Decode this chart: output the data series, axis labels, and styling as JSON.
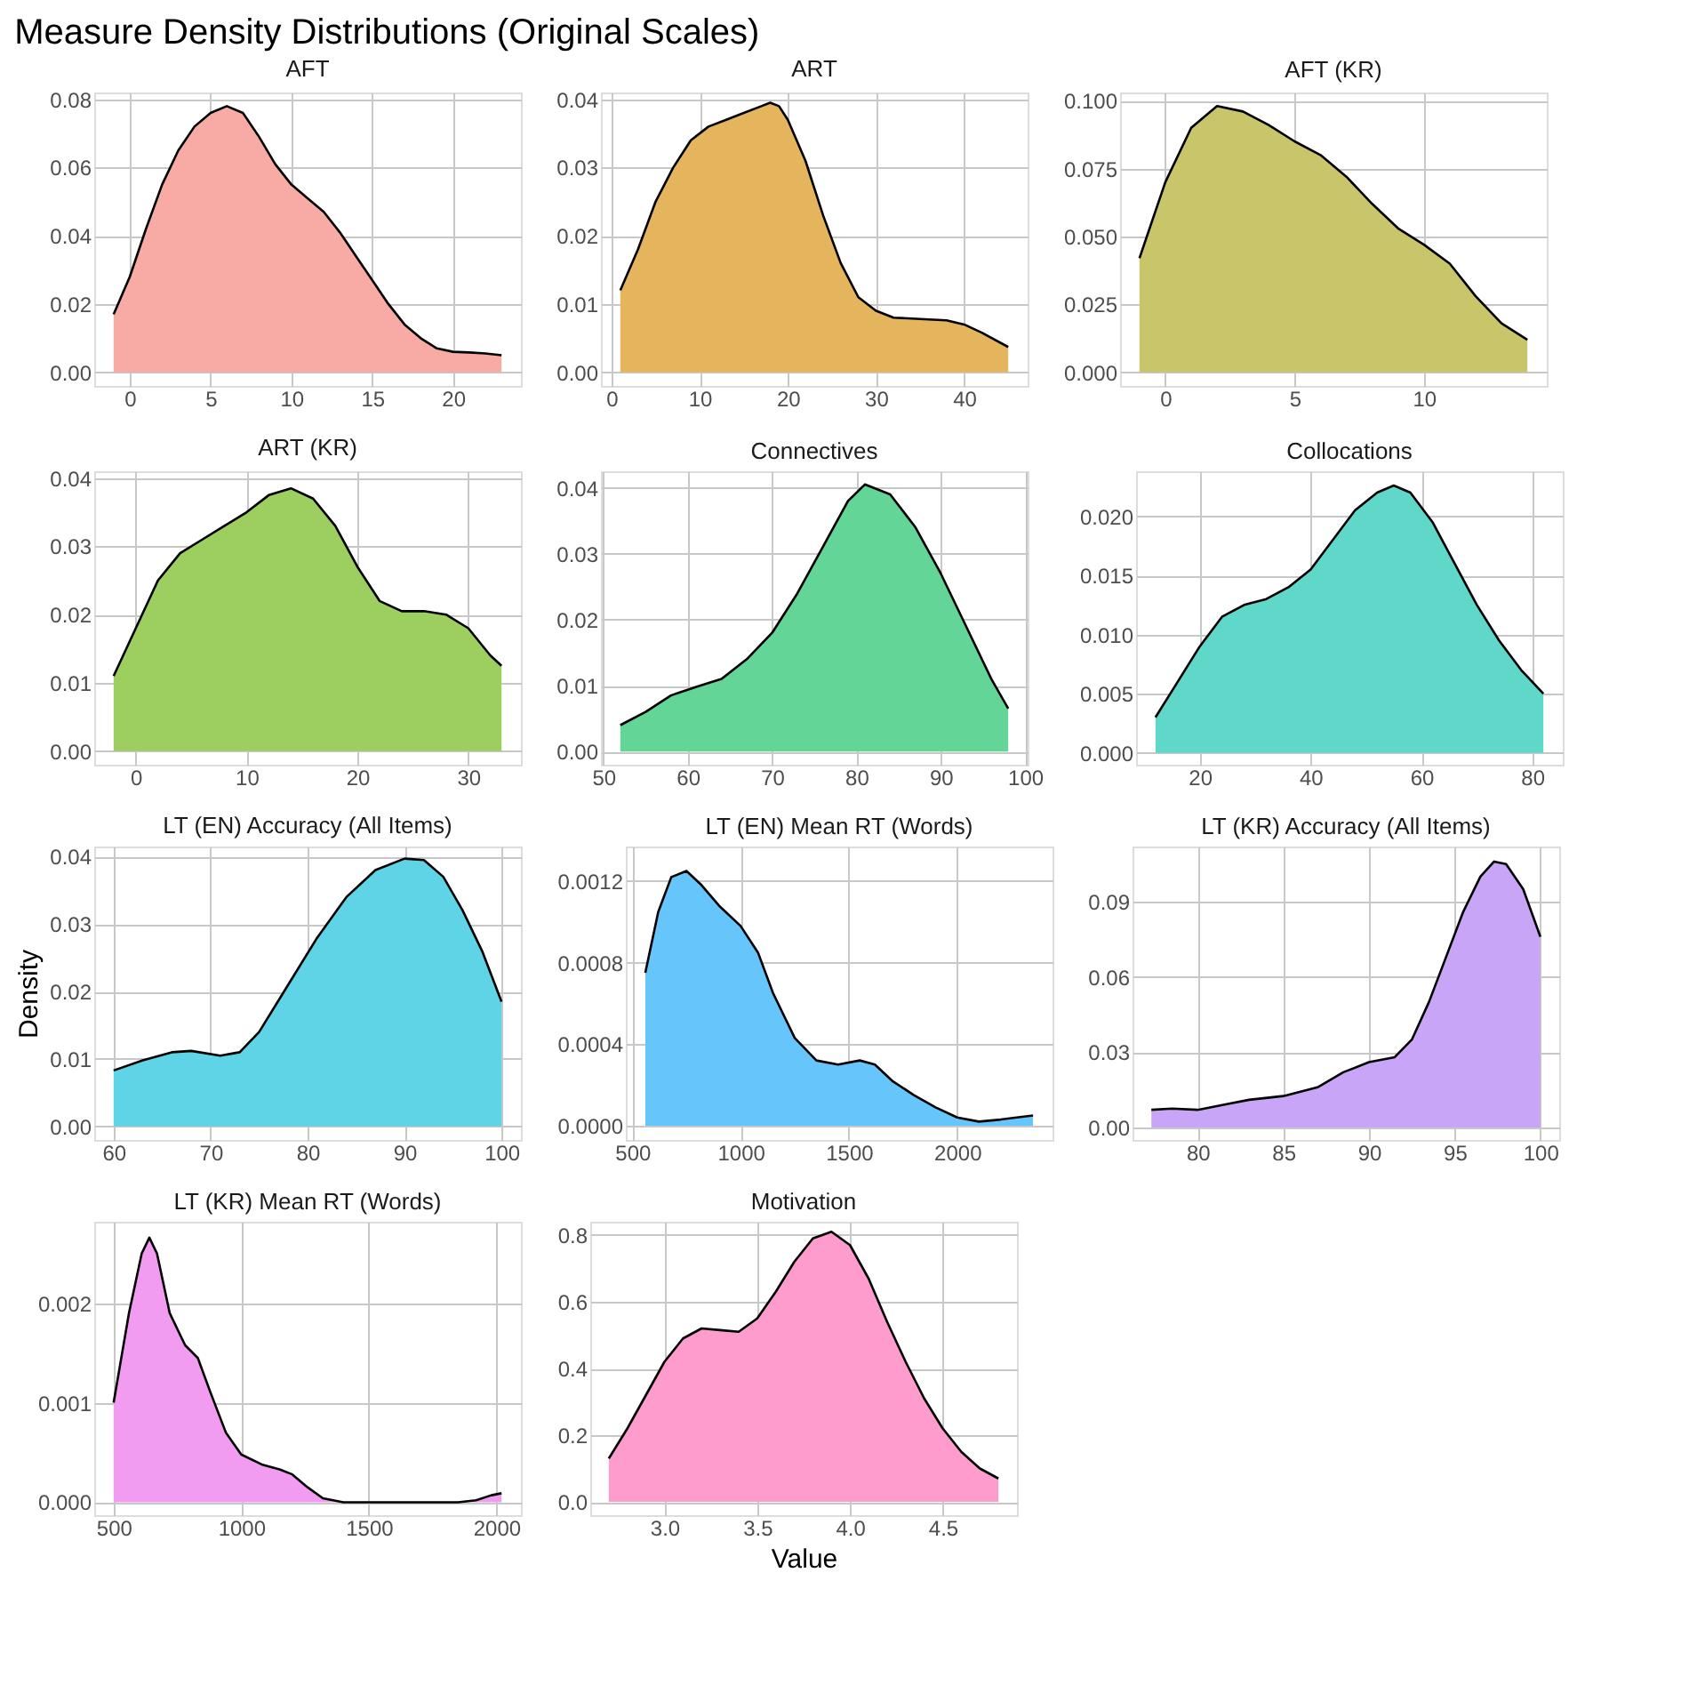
{
  "chart_data": [
    {
      "type": "area",
      "title": "AFT",
      "annotations": [
        "Measure Density Distributions (Original Scales)"
      ],
      "grid": true,
      "color": "#f8aaa5",
      "xlim": [
        -2.2,
        24.2
      ],
      "ylim": [
        -0.004,
        0.082
      ],
      "xticks": [
        0,
        5,
        10,
        15,
        20
      ],
      "yticks": [
        {
          "value": 0,
          "label": "0.00"
        },
        0.02,
        0.04,
        0.06,
        0.08
      ],
      "x": [
        -1,
        0,
        1,
        2,
        3,
        4,
        5,
        6,
        7,
        8,
        9,
        10,
        11,
        12,
        13,
        14,
        15,
        16,
        17,
        18,
        19,
        20,
        21,
        22,
        23
      ],
      "values": [
        0.017,
        0.028,
        0.042,
        0.055,
        0.065,
        0.072,
        0.076,
        0.078,
        0.076,
        0.069,
        0.061,
        0.055,
        0.051,
        0.047,
        0.041,
        0.034,
        0.027,
        0.02,
        0.014,
        0.01,
        0.007,
        0.006,
        0.0058,
        0.0055,
        0.005
      ]
    },
    {
      "type": "area",
      "title": "ART",
      "grid": true,
      "color": "#e5b55e",
      "xlim": [
        -1.2,
        47.2
      ],
      "ylim": [
        -0.002,
        0.041
      ],
      "xticks": [
        0,
        10,
        20,
        30,
        40
      ],
      "yticks": [
        {
          "value": 0,
          "label": "0.00"
        },
        0.01,
        0.02,
        0.03,
        0.04
      ],
      "x": [
        1,
        3,
        5,
        7,
        9,
        11,
        13,
        15,
        17,
        18,
        19,
        20,
        22,
        24,
        26,
        28,
        30,
        32,
        35,
        38,
        40,
        42,
        45
      ],
      "values": [
        0.012,
        0.018,
        0.025,
        0.03,
        0.034,
        0.036,
        0.037,
        0.038,
        0.039,
        0.0395,
        0.039,
        0.037,
        0.031,
        0.023,
        0.016,
        0.011,
        0.009,
        0.008,
        0.0078,
        0.0076,
        0.007,
        0.0058,
        0.0037
      ]
    },
    {
      "type": "area",
      "title": "AFT (KR)",
      "grid": true,
      "color": "#c9c56a",
      "xlim": [
        -1.75,
        14.75
      ],
      "ylim": [
        -0.005,
        0.103
      ],
      "xticks": [
        0,
        5,
        10
      ],
      "yticks": [
        {
          "value": 0,
          "label": "0.000"
        },
        0.025,
        {
          "value": 0.05,
          "label": "0.050"
        },
        0.075,
        {
          "value": 0.1,
          "label": "0.100"
        }
      ],
      "x": [
        -1,
        0,
        1,
        2,
        3,
        4,
        5,
        6,
        7,
        8,
        9,
        10,
        11,
        12,
        13,
        14
      ],
      "values": [
        0.042,
        0.07,
        0.09,
        0.098,
        0.096,
        0.091,
        0.085,
        0.08,
        0.072,
        0.062,
        0.053,
        0.047,
        0.04,
        0.028,
        0.018,
        0.012
      ]
    },
    {
      "type": "area",
      "title": "ART (KR)",
      "grid": true,
      "color": "#9ccf5f",
      "xlim": [
        -3.75,
        34.75
      ],
      "ylim": [
        -0.002,
        0.041
      ],
      "xticks": [
        0,
        10,
        20,
        30
      ],
      "yticks": [
        {
          "value": 0,
          "label": "0.00"
        },
        0.01,
        0.02,
        0.03,
        0.04
      ],
      "x": [
        -2,
        0,
        2,
        4,
        6,
        8,
        10,
        12,
        14,
        16,
        18,
        20,
        22,
        24,
        26,
        28,
        30,
        32,
        33
      ],
      "values": [
        0.011,
        0.018,
        0.025,
        0.029,
        0.031,
        0.033,
        0.035,
        0.0375,
        0.0385,
        0.037,
        0.033,
        0.027,
        0.022,
        0.0205,
        0.0205,
        0.02,
        0.018,
        0.014,
        0.0125
      ]
    },
    {
      "type": "area",
      "title": "Connectives",
      "grid": true,
      "color": "#63d597",
      "xlim": [
        49.7,
        100.3
      ],
      "ylim": [
        -0.002,
        0.0425
      ],
      "xticks": [
        50,
        60,
        70,
        80,
        90,
        100
      ],
      "yticks": [
        {
          "value": 0,
          "label": "0.00"
        },
        0.01,
        0.02,
        0.03,
        0.04
      ],
      "x": [
        52,
        55,
        58,
        61,
        64,
        67,
        70,
        73,
        76,
        79,
        81,
        84,
        87,
        90,
        93,
        96,
        98
      ],
      "values": [
        0.004,
        0.006,
        0.0085,
        0.0098,
        0.011,
        0.014,
        0.018,
        0.024,
        0.031,
        0.038,
        0.0405,
        0.039,
        0.034,
        0.027,
        0.019,
        0.011,
        0.0065
      ]
    },
    {
      "type": "area",
      "title": "Collocations",
      "grid": true,
      "color": "#5fd8c9",
      "xlim": [
        8.5,
        85.5
      ],
      "ylim": [
        -0.001,
        0.0238
      ],
      "xticks": [
        20,
        40,
        60,
        80
      ],
      "yticks": [
        {
          "value": 0,
          "label": "0.000"
        },
        0.005,
        {
          "value": 0.01,
          "label": "0.010"
        },
        0.015,
        {
          "value": 0.02,
          "label": "0.020"
        }
      ],
      "x": [
        12,
        16,
        20,
        24,
        28,
        32,
        36,
        40,
        44,
        48,
        52,
        55,
        58,
        62,
        66,
        70,
        74,
        78,
        82
      ],
      "values": [
        0.003,
        0.006,
        0.009,
        0.0115,
        0.0125,
        0.013,
        0.014,
        0.0155,
        0.018,
        0.0205,
        0.022,
        0.0226,
        0.022,
        0.0195,
        0.016,
        0.0125,
        0.0095,
        0.007,
        0.005
      ]
    },
    {
      "type": "area",
      "title": "LT (EN) Accuracy (All Items)",
      "ylabel": "Density",
      "grid": true,
      "color": "#5fd4e6",
      "xlim": [
        58,
        102
      ],
      "ylim": [
        -0.002,
        0.0415
      ],
      "xticks": [
        60,
        70,
        80,
        90,
        100
      ],
      "yticks": [
        {
          "value": 0,
          "label": "0.00"
        },
        0.01,
        0.02,
        0.03,
        0.04
      ],
      "x": [
        60,
        63,
        66,
        68,
        71,
        73,
        75,
        78,
        81,
        84,
        87,
        90,
        92,
        94,
        96,
        98,
        100
      ],
      "values": [
        0.0083,
        0.0098,
        0.011,
        0.0112,
        0.0105,
        0.011,
        0.014,
        0.021,
        0.028,
        0.034,
        0.038,
        0.0397,
        0.0395,
        0.037,
        0.032,
        0.026,
        0.0185
      ]
    },
    {
      "type": "area",
      "title": "LT (EN) Mean RT (Words)",
      "grid": true,
      "color": "#66c5fb",
      "xlim": [
        470,
        2440
      ],
      "ylim": [
        -7e-05,
        0.00137
      ],
      "xticks": [
        500,
        1000,
        1500,
        2000
      ],
      "yticks": [
        {
          "value": 0,
          "label": "0.0000"
        },
        0.0004,
        0.0008,
        0.0012
      ],
      "x": [
        560,
        620,
        680,
        750,
        820,
        900,
        1000,
        1080,
        1150,
        1250,
        1350,
        1450,
        1550,
        1620,
        1700,
        1800,
        1900,
        2000,
        2100,
        2200,
        2350
      ],
      "values": [
        0.00075,
        0.00105,
        0.00122,
        0.00125,
        0.00118,
        0.00108,
        0.00098,
        0.00085,
        0.00065,
        0.00043,
        0.00032,
        0.0003,
        0.00032,
        0.0003,
        0.00022,
        0.00015,
        9e-05,
        4e-05,
        2e-05,
        3e-05,
        5e-05
      ]
    },
    {
      "type": "area",
      "title": "LT (KR) Accuracy (All Items)",
      "grid": true,
      "color": "#c9a5f8",
      "xlim": [
        76.2,
        101.1
      ],
      "ylim": [
        -0.005,
        0.112
      ],
      "xticks": [
        80,
        85,
        90,
        95,
        100
      ],
      "yticks": [
        {
          "value": 0,
          "label": "0.00"
        },
        0.03,
        0.06,
        0.09
      ],
      "x": [
        77.3,
        78.5,
        80,
        81.5,
        83,
        85,
        87,
        88.5,
        90,
        91.5,
        92.5,
        93.5,
        94.5,
        95.5,
        96.5,
        97.3,
        98,
        99,
        100
      ],
      "values": [
        0.007,
        0.0075,
        0.007,
        0.009,
        0.011,
        0.0125,
        0.016,
        0.022,
        0.026,
        0.028,
        0.035,
        0.05,
        0.068,
        0.086,
        0.1,
        0.106,
        0.105,
        0.095,
        0.076
      ]
    },
    {
      "type": "area",
      "title": "LT (KR) Mean RT (Words)",
      "grid": true,
      "color": "#f29cf1",
      "xlim": [
        424,
        2096
      ],
      "ylim": [
        -0.00013,
        0.00282
      ],
      "xticks": [
        500,
        1000,
        1500,
        2000
      ],
      "yticks": [
        {
          "value": 0,
          "label": "0.000"
        },
        0.001,
        0.002
      ],
      "x": [
        500,
        560,
        610,
        640,
        670,
        720,
        780,
        830,
        880,
        940,
        1000,
        1080,
        1150,
        1200,
        1260,
        1320,
        1400,
        1600,
        1850,
        1920,
        1980,
        2020
      ],
      "values": [
        0.001,
        0.0019,
        0.0025,
        0.00266,
        0.0025,
        0.0019,
        0.00158,
        0.00145,
        0.0011,
        0.0007,
        0.00048,
        0.00038,
        0.00033,
        0.00028,
        0.00015,
        4e-05,
        0.0,
        0.0,
        0.0,
        2e-05,
        7e-05,
        9e-05
      ]
    },
    {
      "type": "area",
      "title": "Motivation",
      "xlabel": "Value",
      "grid": true,
      "color": "#fe9dcd",
      "xlim": [
        2.6,
        4.9
      ],
      "ylim": [
        -0.04,
        0.84
      ],
      "xticks": [
        {
          "value": 3,
          "label": "3.0"
        },
        3.5,
        {
          "value": 4,
          "label": "4.0"
        },
        4.5
      ],
      "yticks": [
        {
          "value": 0,
          "label": "0.0"
        },
        0.2,
        0.4,
        0.6,
        0.8
      ],
      "x": [
        2.7,
        2.8,
        2.9,
        3.0,
        3.1,
        3.2,
        3.3,
        3.4,
        3.5,
        3.6,
        3.7,
        3.8,
        3.9,
        4.0,
        4.1,
        4.2,
        4.3,
        4.4,
        4.5,
        4.6,
        4.7,
        4.8
      ],
      "values": [
        0.13,
        0.22,
        0.32,
        0.42,
        0.49,
        0.52,
        0.515,
        0.51,
        0.55,
        0.63,
        0.72,
        0.79,
        0.81,
        0.77,
        0.67,
        0.54,
        0.42,
        0.31,
        0.22,
        0.15,
        0.1,
        0.07
      ]
    }
  ]
}
